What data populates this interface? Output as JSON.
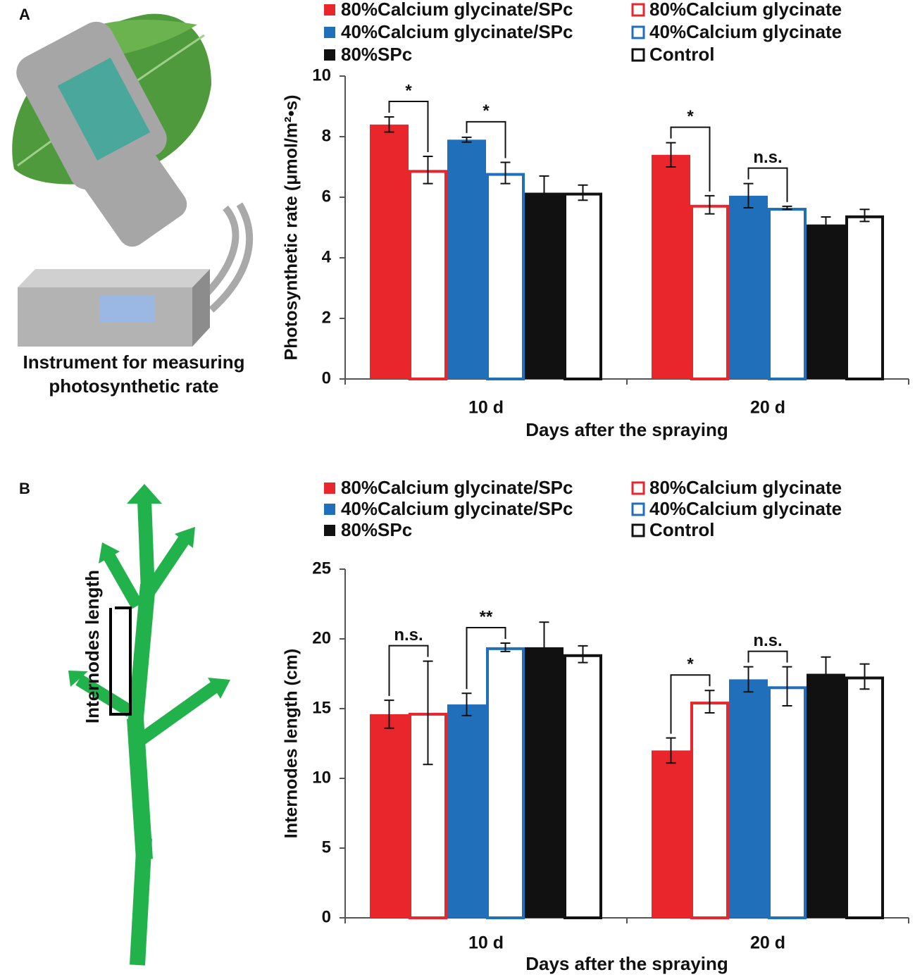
{
  "panels": [
    {
      "label": "A",
      "illustration": {
        "caption": [
          "Instrument for measuring",
          "photosynthetic rate"
        ]
      }
    },
    {
      "label": "B",
      "illustration": {
        "caption": [
          "Internodes length"
        ]
      }
    }
  ],
  "chart_data": [
    {
      "type": "bar",
      "ylabel": "Photosynthetic rate (μmol/m²•s)",
      "xlabel": "Days after the spraying",
      "categories": [
        "10 d",
        "20 d"
      ],
      "ylim": [
        0,
        10
      ],
      "yticks": [
        0,
        2,
        4,
        6,
        8,
        10
      ],
      "grid": false,
      "series": [
        {
          "name": "80%Calcium glycinate/SPc",
          "color": "#e8262b",
          "fill": "solid",
          "values": [
            8.4,
            7.4
          ],
          "errors": [
            0.25,
            0.4
          ]
        },
        {
          "name": "80%Calcium glycinate",
          "color": "#e8262b",
          "fill": "outline",
          "values": [
            6.9,
            5.75
          ],
          "errors": [
            0.45,
            0.3
          ]
        },
        {
          "name": "40%Calcium glycinate/SPc",
          "color": "#1f6fba",
          "fill": "solid",
          "values": [
            7.9,
            6.05
          ],
          "errors": [
            0.08,
            0.4
          ]
        },
        {
          "name": "40%Calcium glycinate",
          "color": "#1f6fba",
          "fill": "outline",
          "values": [
            6.8,
            5.65
          ],
          "errors": [
            0.35,
            0.05
          ]
        },
        {
          "name": "80%SPc",
          "color": "#111111",
          "fill": "solid",
          "values": [
            6.15,
            5.1
          ],
          "errors": [
            0.55,
            0.25
          ]
        },
        {
          "name": "Control",
          "color": "#111111",
          "fill": "outline",
          "values": [
            6.15,
            5.4
          ],
          "errors": [
            0.25,
            0.2
          ]
        }
      ],
      "annotations": [
        "*",
        "*",
        "*",
        "n.s."
      ]
    },
    {
      "type": "bar",
      "ylabel": "Internodes length (cm)",
      "xlabel": "Days after the spraying",
      "categories": [
        "10 d",
        "20 d"
      ],
      "ylim": [
        0,
        25
      ],
      "yticks": [
        0,
        5,
        10,
        15,
        20,
        25
      ],
      "grid": false,
      "series": [
        {
          "name": "80%Calcium glycinate/SPc",
          "color": "#e8262b",
          "fill": "solid",
          "values": [
            14.6,
            12.0
          ],
          "errors": [
            1.0,
            0.9
          ]
        },
        {
          "name": "80%Calcium glycinate",
          "color": "#e8262b",
          "fill": "outline",
          "values": [
            14.7,
            15.5
          ],
          "errors": [
            3.7,
            0.8
          ]
        },
        {
          "name": "40%Calcium glycinate/SPc",
          "color": "#1f6fba",
          "fill": "solid",
          "values": [
            15.3,
            17.1
          ],
          "errors": [
            0.8,
            0.9
          ]
        },
        {
          "name": "40%Calcium glycinate",
          "color": "#1f6fba",
          "fill": "outline",
          "values": [
            19.4,
            16.6
          ],
          "errors": [
            0.3,
            1.4
          ]
        },
        {
          "name": "80%SPc",
          "color": "#111111",
          "fill": "solid",
          "values": [
            19.4,
            17.5
          ],
          "errors": [
            1.8,
            1.2
          ]
        },
        {
          "name": "Control",
          "color": "#111111",
          "fill": "outline",
          "values": [
            18.9,
            17.3
          ],
          "errors": [
            0.6,
            0.9
          ]
        }
      ],
      "annotations": [
        "n.s.",
        "**",
        "*",
        "n.s."
      ]
    }
  ]
}
